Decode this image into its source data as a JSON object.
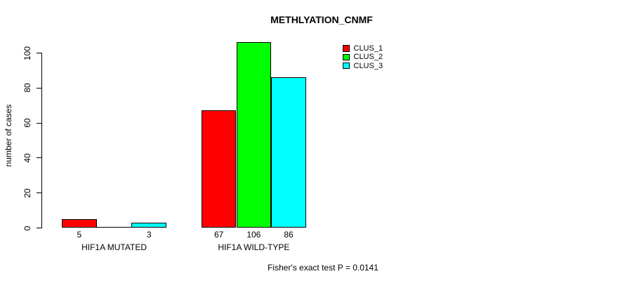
{
  "chart_data": {
    "type": "bar",
    "title": "METHLYATION_CNMF",
    "ylabel": "number of cases",
    "xlabel": "",
    "note": "Fisher's exact test P = 0.0141",
    "categories": [
      "HIF1A MUTATED",
      "HIF1A WILD-TYPE"
    ],
    "series": [
      {
        "name": "CLUS_1",
        "color": "#FF0000",
        "values": [
          5,
          67
        ]
      },
      {
        "name": "CLUS_2",
        "color": "#00FF00",
        "values": [
          0,
          106
        ]
      },
      {
        "name": "CLUS_3",
        "color": "#00FFFF",
        "values": [
          3,
          86
        ]
      }
    ],
    "yticks": [
      0,
      20,
      40,
      60,
      80,
      100
    ],
    "ylim": [
      0,
      106
    ],
    "grid": false,
    "legend_position": "top-right",
    "bar_value_labels_shown": true,
    "zero_value_labels_hidden": true
  }
}
